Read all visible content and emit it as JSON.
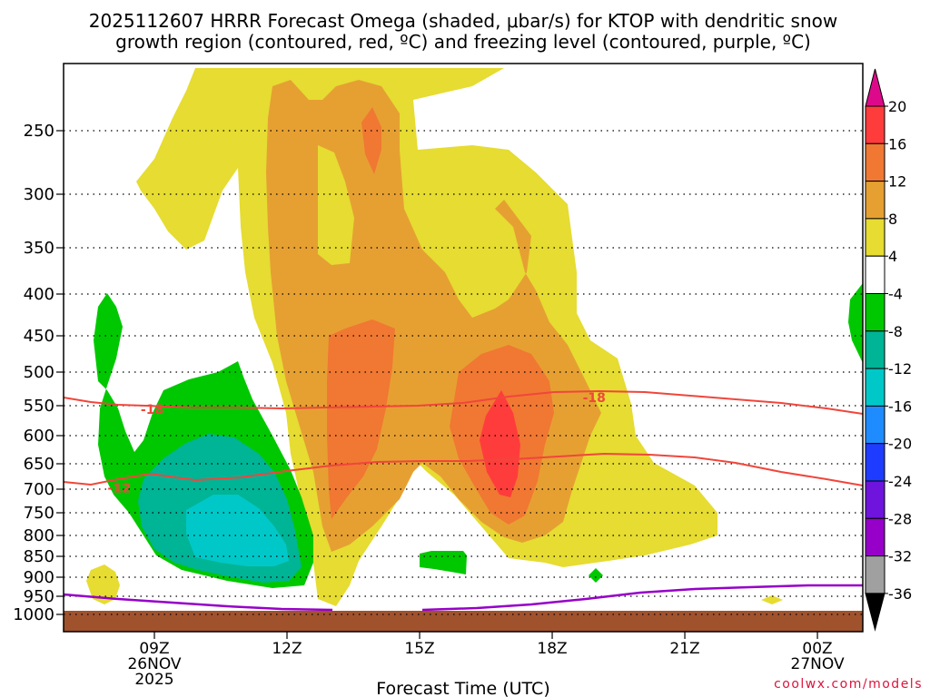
{
  "chart_data": {
    "type": "contour",
    "title_line1": "2025112607 HRRR Forecast Omega (shaded, μbar/s) for KTOP with dendritic snow",
    "title_line2": "growth region (contoured, red, ºC) and freezing level (contoured, purple, ºC)",
    "xlabel": "Forecast Time (UTC)",
    "credit": "coolwx.com/models",
    "x_range_hours": [
      7,
      25
    ],
    "y_range_hpa": [
      1000,
      200
    ],
    "y_ticks": [
      {
        "label": "250",
        "p": 250
      },
      {
        "label": "300",
        "p": 300
      },
      {
        "label": "350",
        "p": 350
      },
      {
        "label": "400",
        "p": 400
      },
      {
        "label": "450",
        "p": 450
      },
      {
        "label": "500",
        "p": 500
      },
      {
        "label": "550",
        "p": 550
      },
      {
        "label": "600",
        "p": 600
      },
      {
        "label": "650",
        "p": 650
      },
      {
        "label": "700",
        "p": 700
      },
      {
        "label": "750",
        "p": 750
      },
      {
        "label": "800",
        "p": 800
      },
      {
        "label": "850",
        "p": 850
      },
      {
        "label": "900",
        "p": 900
      },
      {
        "label": "950",
        "p": 950
      },
      {
        "label": "1000",
        "p": 1000
      }
    ],
    "x_ticks": [
      {
        "label": "09Z",
        "line2": "26NOV",
        "line3": "2025",
        "h": 9
      },
      {
        "label": "12Z",
        "line2": "",
        "line3": "",
        "h": 12
      },
      {
        "label": "15Z",
        "line2": "",
        "line3": "",
        "h": 15
      },
      {
        "label": "18Z",
        "line2": "",
        "line3": "",
        "h": 18
      },
      {
        "label": "21Z",
        "line2": "",
        "line3": "",
        "h": 21
      },
      {
        "label": "00Z",
        "line2": "27NOV",
        "line3": "",
        "h": 24
      }
    ],
    "colorbar": {
      "labels": [
        "20",
        "16",
        "12",
        "8",
        "4",
        "-4",
        "-8",
        "-12",
        "-16",
        "-20",
        "-24",
        "-28",
        "-32",
        "-36"
      ],
      "colors": [
        "#dc0a8a",
        "#ff3c3c",
        "#f07832",
        "#e6a032",
        "#e6dc32",
        "#ffffff",
        "#00c800",
        "#00b496",
        "#00c8c8",
        "#1e8cff",
        "#1e3cff",
        "#6e14dc",
        "#9600c8",
        "#a0a0a0",
        "#000000"
      ]
    },
    "contour_labels": [
      {
        "text": "-18",
        "h": 8.95,
        "p": 556
      },
      {
        "text": "-18",
        "h": 18.95,
        "p": 538
      },
      {
        "text": "-12",
        "h": 8.2,
        "p": 697
      }
    ],
    "fill_colors": {
      "pos4": "#e6dc32",
      "pos8": "#e6a032",
      "pos12": "#f07832",
      "pos16": "#ff3c3c",
      "neg4": "#00c800",
      "neg8": "#00b496",
      "neg12": "#00c8c8",
      "ground": "#a0522d",
      "dgz": "#f0463c",
      "freezing": "#9600c8"
    }
  }
}
